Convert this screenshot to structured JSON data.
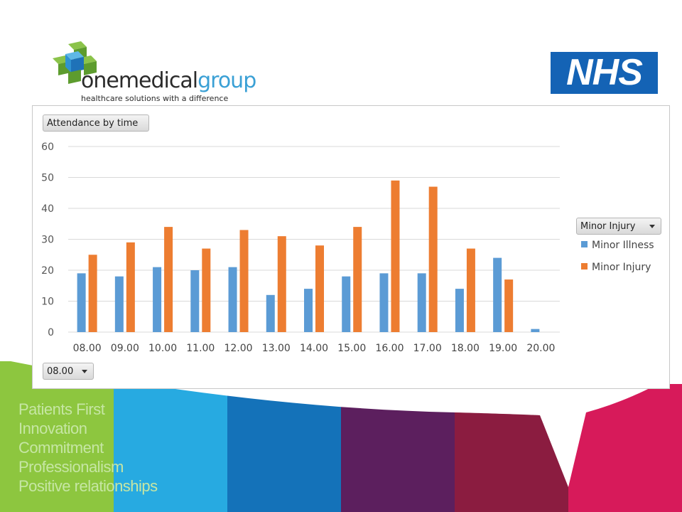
{
  "brand": {
    "name_part1": "onemedical",
    "name_part2": "group",
    "tagline": "healthcare solutions with a difference",
    "partner_logo_text": "NHS",
    "colors": {
      "green": "#8bc34a",
      "blue": "#3aa0d5",
      "nhs_blue": "#1463b5"
    }
  },
  "controls": {
    "field_button_label": "Attendance by time",
    "legend_filter_label": "Minor Injury",
    "axis_filter_label": "08.00"
  },
  "values_list": [
    "Patients First",
    "Innovation",
    "Commitment",
    "Professionalism",
    "Positive relationships"
  ],
  "footer_band_colors": [
    "#8dc63f",
    "#27aae1",
    "#1472b9",
    "#5c1f5e",
    "#8b1c40",
    "#d71a5a"
  ],
  "chart_data": {
    "type": "bar",
    "categories": [
      "08.00",
      "09.00",
      "10.00",
      "11.00",
      "12.00",
      "13.00",
      "14.00",
      "15.00",
      "16.00",
      "17.00",
      "18.00",
      "19.00",
      "20.00"
    ],
    "series": [
      {
        "name": "Minor Illness",
        "color": "#5b9bd5",
        "values": [
          19,
          18,
          21,
          20,
          21,
          12,
          14,
          18,
          19,
          19,
          14,
          24,
          1
        ]
      },
      {
        "name": "Minor Injury",
        "color": "#ed7d31",
        "values": [
          25,
          29,
          34,
          27,
          33,
          31,
          28,
          34,
          49,
          47,
          27,
          17,
          0
        ]
      }
    ],
    "yticks": [
      0,
      10,
      20,
      30,
      40,
      50,
      60
    ],
    "ylim": [
      0,
      60
    ],
    "grid": true,
    "legend_position": "right"
  }
}
